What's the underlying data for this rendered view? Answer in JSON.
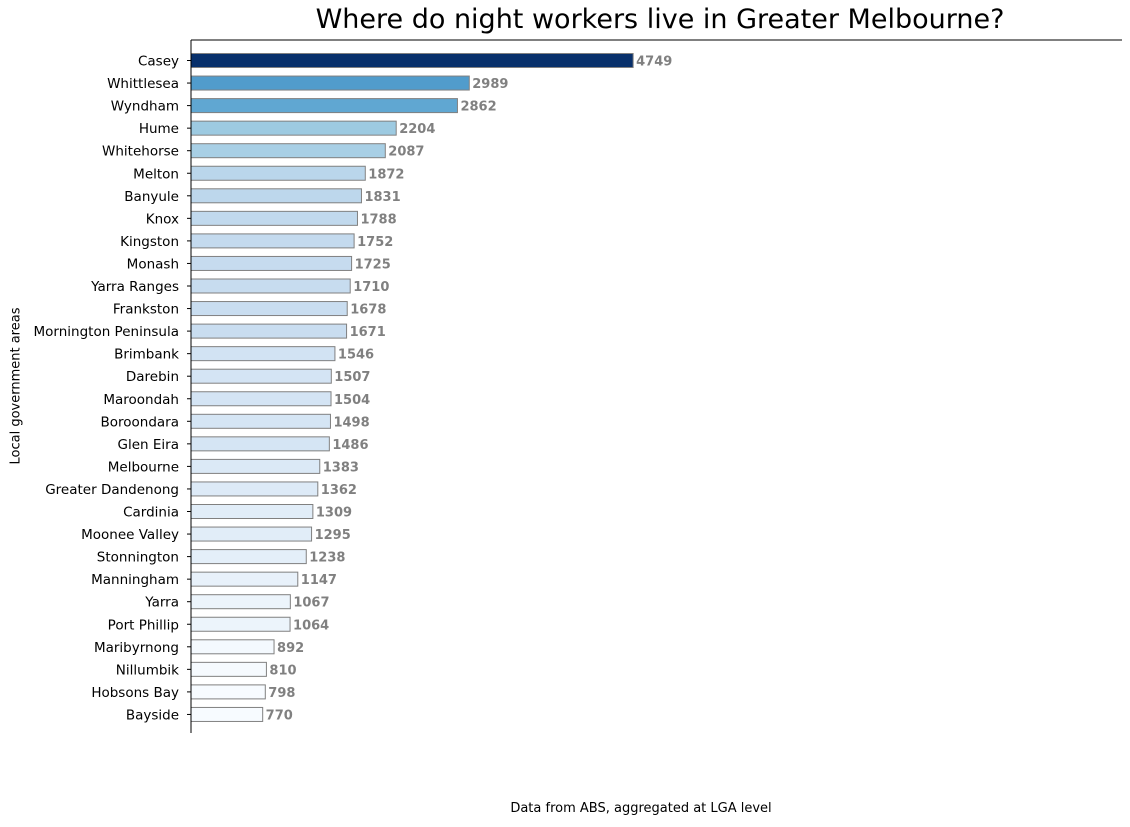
{
  "chart_data": {
    "type": "bar",
    "orientation": "horizontal",
    "title": "Where do night workers live in Greater Melbourne?",
    "ylabel": "Local government areas",
    "xlabel": "",
    "footer": "Data from ABS, aggregated at LGA level",
    "xlim": [
      0,
      10000
    ],
    "grid": false,
    "colormap": "Blues",
    "categories": [
      "Casey",
      "Whittlesea",
      "Wyndham",
      "Hume",
      "Whitehorse",
      "Melton",
      "Banyule",
      "Knox",
      "Kingston",
      "Monash",
      "Yarra Ranges",
      "Frankston",
      "Mornington Peninsula",
      "Brimbank",
      "Darebin",
      "Maroondah",
      "Boroondara",
      "Glen Eira",
      "Melbourne",
      "Greater Dandenong",
      "Cardinia",
      "Moonee Valley",
      "Stonnington",
      "Manningham",
      "Yarra",
      "Port Phillip",
      "Maribyrnong",
      "Nillumbik",
      "Hobsons Bay",
      "Bayside"
    ],
    "values": [
      4749,
      2989,
      2862,
      2204,
      2087,
      1872,
      1831,
      1788,
      1752,
      1725,
      1710,
      1678,
      1671,
      1546,
      1507,
      1504,
      1498,
      1486,
      1383,
      1362,
      1309,
      1295,
      1238,
      1147,
      1067,
      1064,
      892,
      810,
      798,
      770
    ],
    "value_labels": [
      "4749",
      "2989",
      "2862",
      "2204",
      "2087",
      "1872",
      "1831",
      "1788",
      "1752",
      "1725",
      "1710",
      "1678",
      "1671",
      "1546",
      "1507",
      "1504",
      "1498",
      "1486",
      "1383",
      "1362",
      "1309",
      "1295",
      "1238",
      "1147",
      "1067",
      "1064",
      "892",
      "810",
      "798",
      "770"
    ],
    "colors": [
      "#08306b",
      "#519ccc",
      "#60a7d2",
      "#9dcae1",
      "#a8cfe5",
      "#bad6eb",
      "#bdd7ec",
      "#c1d9ed",
      "#c4daee",
      "#c6dbef",
      "#c7dcef",
      "#c9ddf0",
      "#c9ddf0",
      "#d2e3f3",
      "#d4e4f4",
      "#d4e4f4",
      "#d5e5f4",
      "#d5e5f4",
      "#dbe9f6",
      "#ddeaf7",
      "#e1edf8",
      "#e1edf8",
      "#e4eff9",
      "#e8f1fa",
      "#ecf4fb",
      "#ecf4fb",
      "#f4f9fe",
      "#f6fafe",
      "#f7fbff",
      "#f7fbff"
    ],
    "bar_edge_color": "#808080",
    "value_label_color": "#808080"
  }
}
